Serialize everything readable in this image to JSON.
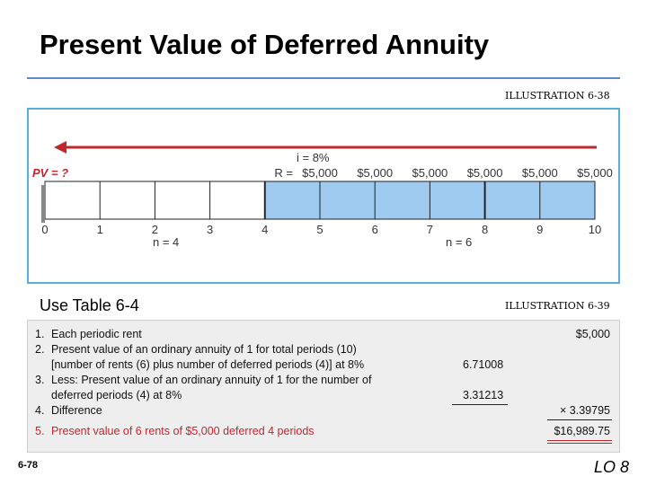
{
  "title": "Present Value of Deferred Annuity",
  "illustration_top": "ILLUSTRATION 6-38",
  "illustration_bottom": "ILLUSTRATION 6-39",
  "timeline": {
    "pv_label": "PV = ?",
    "rate_label": "i = 8%",
    "rent_prefix": "R = ",
    "rents": [
      "$5,000",
      "$5,000",
      "$5,000",
      "$5,000",
      "$5,000",
      "$5,000"
    ],
    "periods": [
      "0",
      "1",
      "2",
      "3",
      "4",
      "5",
      "6",
      "7",
      "8",
      "9",
      "10"
    ],
    "deferred_label": "n = 4",
    "rent_periods_label": "n = 6",
    "deferred_count": 4,
    "total_periods": 10
  },
  "use_table": "Use Table 6-4",
  "table": {
    "rows": [
      {
        "num": "1.",
        "lines": [
          "Each periodic rent"
        ],
        "value": "$5,000"
      },
      {
        "num": "2.",
        "lines": [
          "Present value of an ordinary annuity of 1 for total periods (10)",
          "[number of rents (6) plus number of deferred periods (4)] at 8%"
        ],
        "factor": "6.71008"
      },
      {
        "num": "3.",
        "lines": [
          "Less: Present value of an ordinary annuity of 1 for the number of",
          "deferred periods (4) at 8%"
        ],
        "factor": "3.31213"
      },
      {
        "num": "4.",
        "lines": [
          "Difference"
        ],
        "value": "× 3.39795"
      },
      {
        "num": "5.",
        "lines": [
          "Present value of 6 rents of $5,000 deferred 4 periods"
        ],
        "value": "$16,989.75"
      }
    ]
  },
  "footer": {
    "page": "6-78",
    "lo": "LO 8"
  },
  "colors": {
    "arrow": "#c0272d",
    "shaded": "#9ecbef",
    "panel_border": "#5aaedb"
  }
}
